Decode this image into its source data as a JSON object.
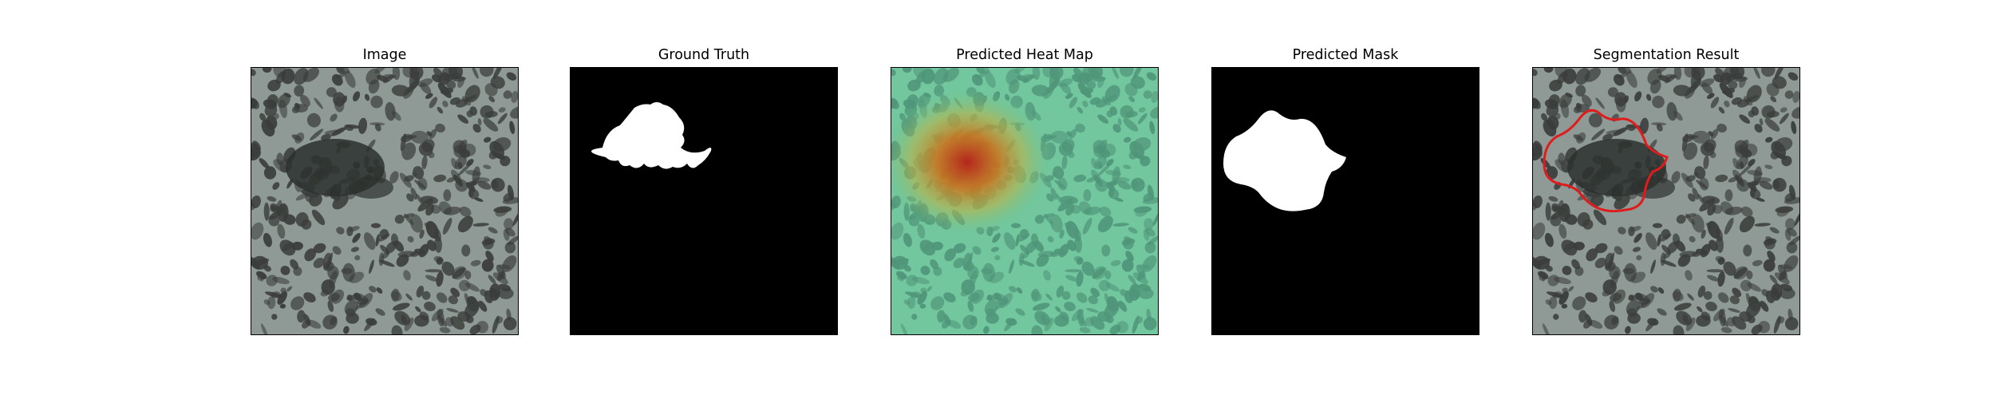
{
  "figure": {
    "panels": [
      {
        "id": "image",
        "title": "Image"
      },
      {
        "id": "ground-truth",
        "title": "Ground Truth"
      },
      {
        "id": "heatmap",
        "title": "Predicted Heat Map"
      },
      {
        "id": "mask",
        "title": "Predicted Mask"
      },
      {
        "id": "segmentation",
        "title": "Segmentation Result"
      }
    ]
  },
  "colors": {
    "texture_light": "#8f9a96",
    "texture_dark": "#3a3d3b",
    "mask_fg": "#ffffff",
    "mask_bg": "#000000",
    "heat_cool": "#5fc79a",
    "heat_hot": "#b5261c",
    "contour": "#e01b1b"
  }
}
